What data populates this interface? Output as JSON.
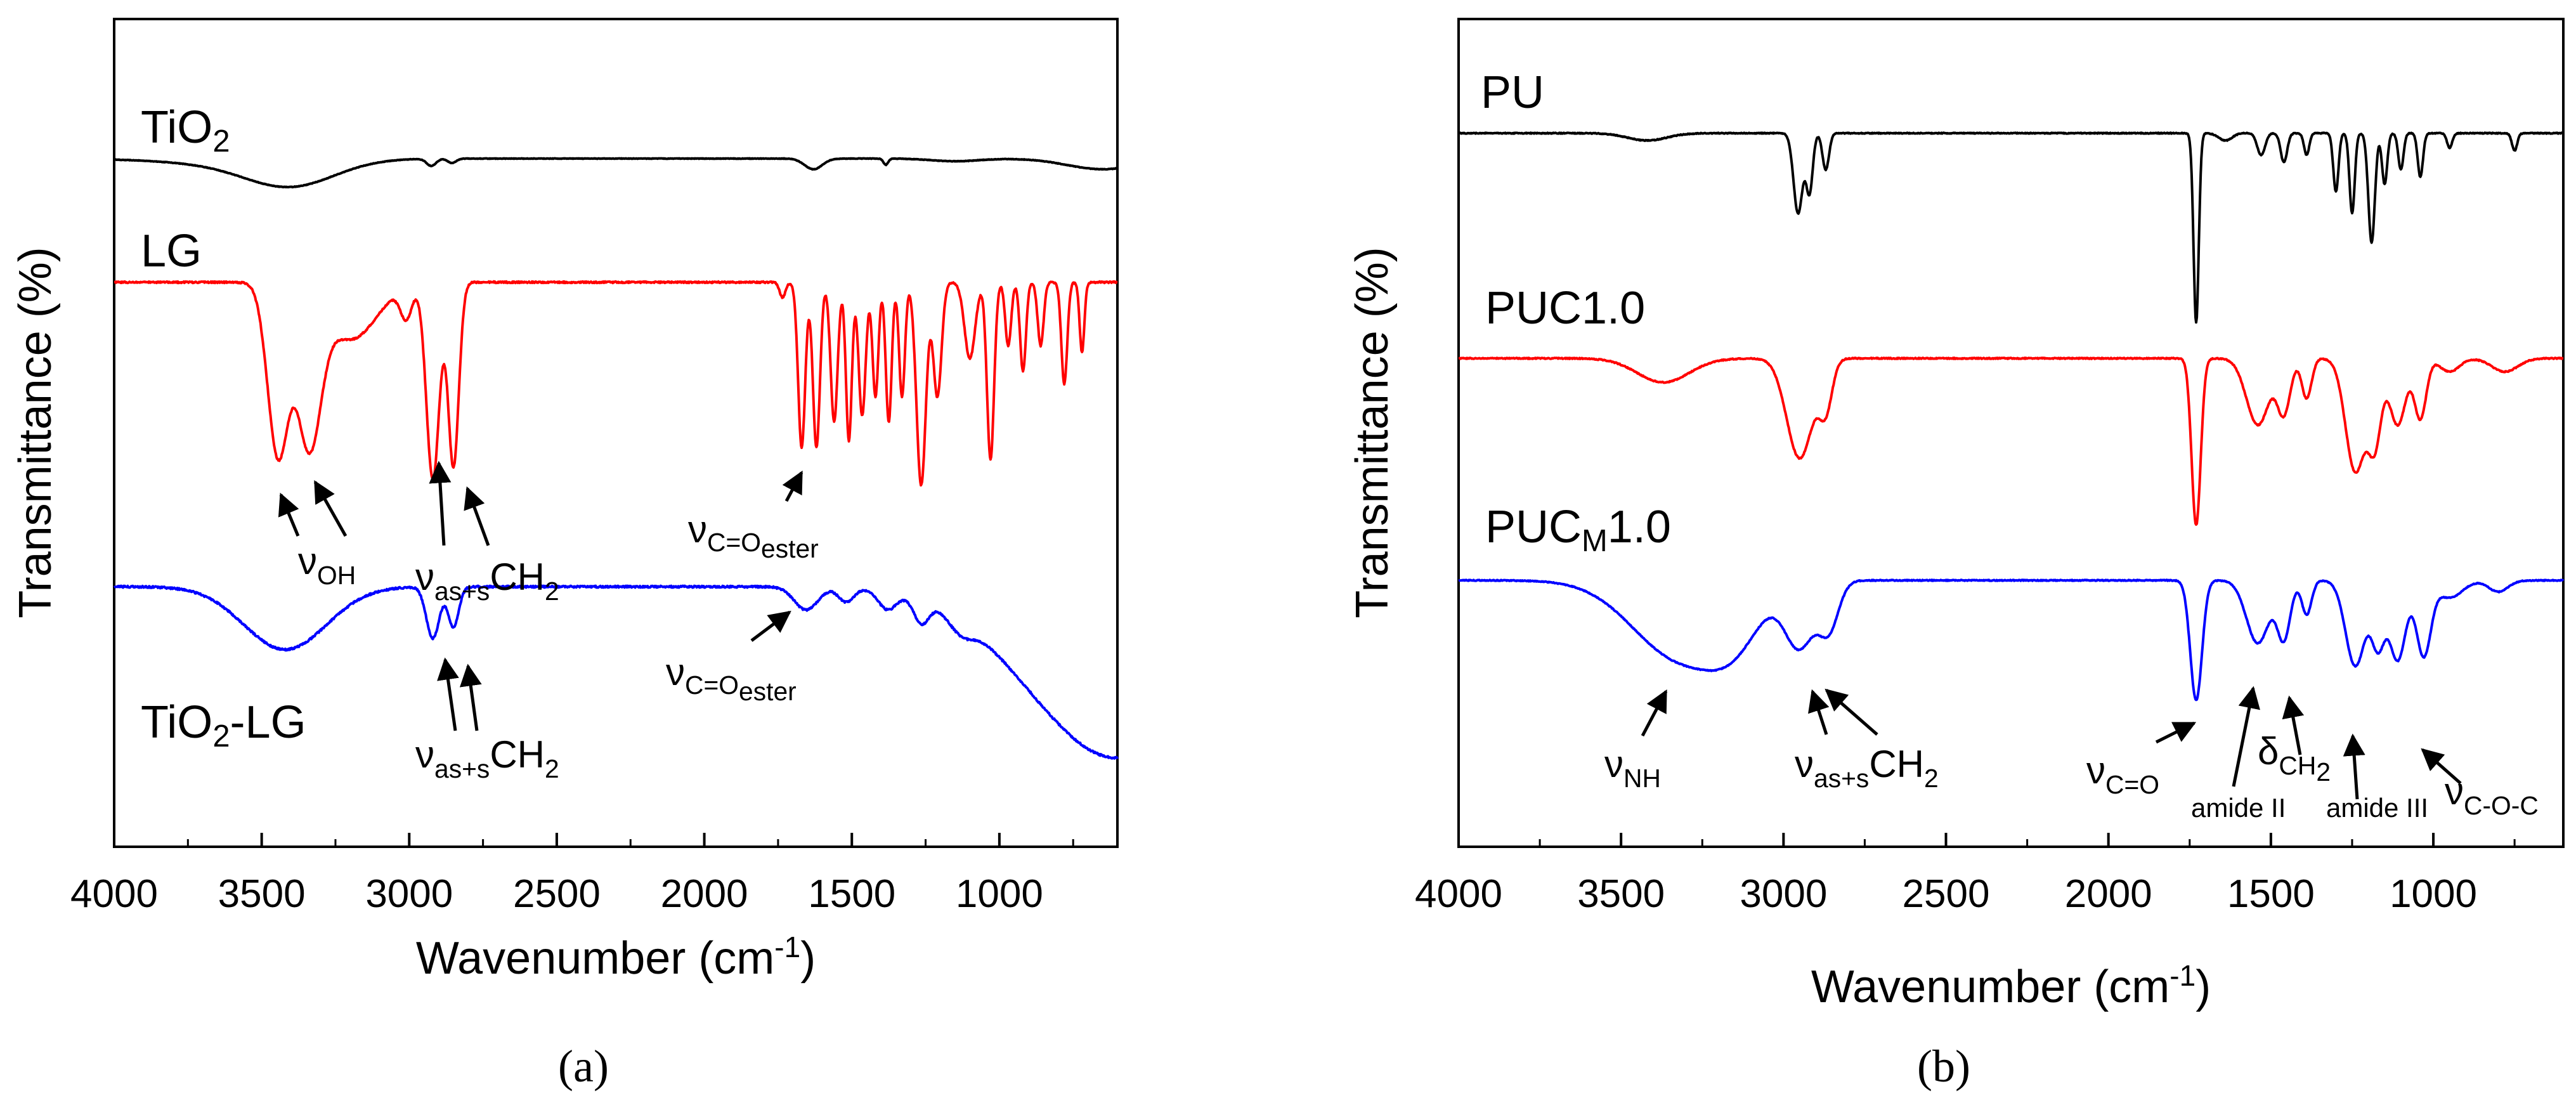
{
  "chart_data": [
    {
      "type": "line",
      "panel": "a",
      "caption": "(a)",
      "xlabel": "Wavenumber (cm-1)",
      "ylabel": "Transmittance (%)",
      "xlim": [
        4000,
        600
      ],
      "xticks": [
        4000,
        3500,
        3000,
        2500,
        2000,
        1500,
        1000
      ],
      "x_reversed": true,
      "y_units": "arbitrary (offset, stacked)",
      "series": [
        {
          "name": "TiO2",
          "label": "TiO",
          "label_sub": "2",
          "label_after": "",
          "color": "#000000",
          "baseline": 0.0,
          "noise": 0.003,
          "features": [
            [
              3400,
              -0.28,
              150
            ],
            [
              3600,
              -0.06,
              220
            ],
            [
              2925,
              -0.08,
              16
            ],
            [
              2855,
              -0.05,
              14
            ],
            [
              1630,
              -0.12,
              30
            ],
            [
              1385,
              -0.07,
              8
            ],
            [
              1150,
              -0.03,
              80
            ],
            [
              650,
              -0.12,
              120
            ]
          ]
        },
        {
          "name": "LG",
          "label": "LG",
          "label_sub": "",
          "label_after": "",
          "color": "#ff0000",
          "baseline": 0.0,
          "noise": 0.006,
          "features": [
            [
              3445,
              -1.35,
              35
            ],
            [
              3340,
              -1.2,
              40
            ],
            [
              3200,
              -0.45,
              90
            ],
            [
              2920,
              -1.55,
              22
            ],
            [
              2850,
              -1.45,
              18
            ],
            [
              3010,
              -0.25,
              20
            ],
            [
              1735,
              -0.12,
              10
            ],
            [
              1670,
              -1.3,
              12
            ],
            [
              1620,
              -1.3,
              12
            ],
            [
              1560,
              -1.1,
              12
            ],
            [
              1510,
              -1.25,
              10
            ],
            [
              1465,
              -1.05,
              12
            ],
            [
              1420,
              -0.9,
              10
            ],
            [
              1375,
              -1.1,
              10
            ],
            [
              1330,
              -0.9,
              10
            ],
            [
              1265,
              -1.6,
              16
            ],
            [
              1210,
              -0.9,
              14
            ],
            [
              1100,
              -0.6,
              18
            ],
            [
              1030,
              -1.4,
              12
            ],
            [
              970,
              -0.5,
              10
            ],
            [
              920,
              -0.7,
              10
            ],
            [
              860,
              -0.5,
              10
            ],
            [
              780,
              -0.8,
              10
            ],
            [
              720,
              -0.55,
              8
            ]
          ]
        },
        {
          "name": "TiO2-LG",
          "label": "TiO",
          "label_sub": "2",
          "label_after": "-LG",
          "color": "#0000ff",
          "baseline": 0.0,
          "noise": 0.008,
          "features": [
            [
              3420,
              -0.55,
              140
            ],
            [
              2920,
              -0.45,
              22
            ],
            [
              2850,
              -0.35,
              18
            ],
            [
              1655,
              -0.2,
              40
            ],
            [
              1520,
              -0.12,
              25
            ],
            [
              1380,
              -0.15,
              30
            ],
            [
              1265,
              -0.2,
              25
            ],
            [
              1130,
              -0.12,
              40
            ],
            [
              600,
              -1.5,
              300
            ]
          ]
        }
      ],
      "annotations": [
        {
          "main": "ν",
          "sub": "OH",
          "after": "",
          "after_sub": ""
        },
        {
          "main": "ν",
          "sub": "as+s",
          "after": "CH",
          "after_sub": "2"
        },
        {
          "main": "ν",
          "sub": "C=O",
          "after": "",
          "after_sub": "",
          "sub2": "ester"
        },
        {
          "main": "ν",
          "sub": "C=O",
          "after": "",
          "after_sub": "",
          "sub2": "ester"
        },
        {
          "main": "ν",
          "sub": "as+s",
          "after": "CH",
          "after_sub": "2"
        }
      ]
    },
    {
      "type": "line",
      "panel": "b",
      "caption": "(b)",
      "xlabel": "Wavenumber (cm-1)",
      "ylabel": "Transmittance (%)",
      "xlim": [
        4000,
        600
      ],
      "xticks": [
        4000,
        3500,
        3000,
        2500,
        2000,
        1500,
        1000
      ],
      "x_reversed": true,
      "y_units": "arbitrary (offset, stacked)",
      "series": [
        {
          "name": "PU",
          "label": "PU",
          "label_sub": "",
          "label_after": "",
          "color": "#000000",
          "baseline": 0.0,
          "noise": 0.003,
          "features": [
            [
              3420,
              -0.05,
              60
            ],
            [
              2955,
              -0.55,
              14
            ],
            [
              2920,
              -0.4,
              10
            ],
            [
              2870,
              -0.25,
              10
            ],
            [
              1730,
              -1.3,
              8
            ],
            [
              1640,
              -0.05,
              20
            ],
            [
              1530,
              -0.15,
              12
            ],
            [
              1460,
              -0.2,
              10
            ],
            [
              1390,
              -0.15,
              8
            ],
            [
              1300,
              -0.4,
              8
            ],
            [
              1250,
              -0.55,
              8
            ],
            [
              1190,
              -0.75,
              10
            ],
            [
              1150,
              -0.35,
              8
            ],
            [
              1100,
              -0.25,
              8
            ],
            [
              1040,
              -0.3,
              8
            ],
            [
              950,
              -0.1,
              8
            ],
            [
              750,
              -0.12,
              8
            ]
          ]
        },
        {
          "name": "PUC1.0",
          "label": "PUC1.0",
          "label_sub": "",
          "label_after": "",
          "color": "#ff0000",
          "baseline": 0.0,
          "noise": 0.004,
          "features": [
            [
              3370,
              -0.18,
              80
            ],
            [
              2950,
              -0.75,
              40
            ],
            [
              2870,
              -0.35,
              20
            ],
            [
              1730,
              -1.25,
              14
            ],
            [
              1540,
              -0.5,
              35
            ],
            [
              1460,
              -0.4,
              20
            ],
            [
              1390,
              -0.3,
              15
            ],
            [
              1240,
              -0.85,
              30
            ],
            [
              1180,
              -0.6,
              20
            ],
            [
              1110,
              -0.5,
              25
            ],
            [
              1040,
              -0.45,
              18
            ],
            [
              950,
              -0.1,
              30
            ],
            [
              780,
              -0.1,
              40
            ]
          ]
        },
        {
          "name": "PUCM1.0",
          "label": "PUC",
          "label_sub": "M",
          "label_after": "1.0",
          "color": "#0000ff",
          "baseline": 0.0,
          "noise": 0.004,
          "features": [
            [
              3310,
              -0.7,
              150
            ],
            [
              3150,
              -0.3,
              80
            ],
            [
              2950,
              -0.55,
              45
            ],
            [
              2860,
              -0.4,
              30
            ],
            [
              1730,
              -1.05,
              18
            ],
            [
              1540,
              -0.55,
              35
            ],
            [
              1460,
              -0.5,
              20
            ],
            [
              1390,
              -0.3,
              15
            ],
            [
              1240,
              -0.75,
              30
            ],
            [
              1170,
              -0.55,
              20
            ],
            [
              1110,
              -0.7,
              25
            ],
            [
              1030,
              -0.65,
              22
            ],
            [
              950,
              -0.15,
              40
            ],
            [
              800,
              -0.1,
              30
            ]
          ]
        }
      ],
      "annotations": [
        {
          "main": "ν",
          "sub": "NH",
          "after": "",
          "after_sub": ""
        },
        {
          "main": "ν",
          "sub": "as+s",
          "after": "CH",
          "after_sub": "2"
        },
        {
          "main": "ν",
          "sub": "C=O",
          "after": "",
          "after_sub": ""
        },
        {
          "main": "amide II",
          "sub": "",
          "after": "",
          "after_sub": ""
        },
        {
          "main": "δ",
          "sub": "CH",
          "after": "",
          "after_sub": "",
          "sub2": "2"
        },
        {
          "main": "amide III",
          "sub": "",
          "after": "",
          "after_sub": ""
        },
        {
          "main": "ν",
          "sub": "C-O-C",
          "after": "",
          "after_sub": ""
        }
      ]
    }
  ]
}
